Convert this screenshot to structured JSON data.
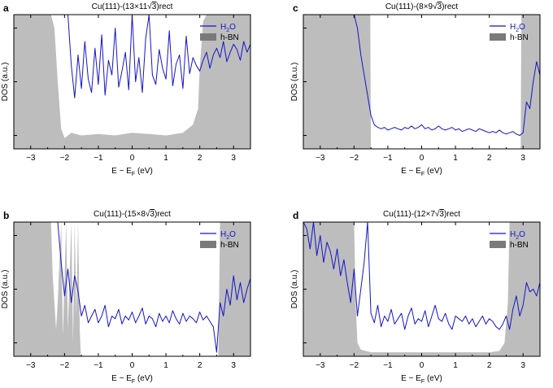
{
  "colors": {
    "h2o": "#1515c8",
    "hbn": "#bdbdbd",
    "hbn_legend": "#7a7a7a",
    "axis": "#000000"
  },
  "chart_data": [
    {
      "type": "area",
      "panel_label": "a",
      "title_prefix": "Cu(111)-(13",
      "title_mid": "11",
      "title_sqrt": "3",
      "title_suffix": ")rect",
      "xlabel": "E − E",
      "xlabel_sub": "F",
      "xlabel_unit": " (eV)",
      "ylabel": "DOS (a.u.)",
      "xlim": [
        -3.5,
        3.5
      ],
      "ylim": [
        0,
        100
      ],
      "xticks": [
        -3,
        -2,
        -1,
        0,
        1,
        2,
        3
      ],
      "grid": false,
      "legend_position": "top-right",
      "legend": [
        {
          "label": "H",
          "sub": "2",
          "tail": "O",
          "kind": "line"
        },
        {
          "label": "h-BN",
          "kind": "box"
        }
      ],
      "hbn_x": [
        -3.5,
        -2.4,
        -2.3,
        -2.2,
        -2.1,
        -2.0,
        -1.8,
        -1.5,
        -1.0,
        -0.5,
        0.0,
        0.5,
        1.0,
        1.5,
        1.8,
        1.95,
        2.0,
        2.1,
        2.2,
        2.4,
        3.5
      ],
      "hbn_y": [
        100,
        100,
        90,
        50,
        15,
        8,
        12,
        10,
        11,
        10,
        12,
        11,
        10,
        12,
        18,
        30,
        60,
        95,
        100,
        100,
        100
      ],
      "h2o_x": [
        -3.5,
        -3.4,
        -3.3,
        -3.2,
        -3.1,
        -3.0,
        -2.9,
        -2.8,
        -2.7,
        -2.6,
        -2.5,
        -2.4,
        -2.3,
        -2.2,
        -2.1,
        -2.0,
        -1.9,
        -1.8,
        -1.7,
        -1.6,
        -1.5,
        -1.4,
        -1.3,
        -1.2,
        -1.1,
        -1.0,
        -0.9,
        -0.8,
        -0.7,
        -0.6,
        -0.5,
        -0.4,
        -0.3,
        -0.2,
        -0.1,
        0.0,
        0.1,
        0.2,
        0.3,
        0.4,
        0.5,
        0.6,
        0.7,
        0.8,
        0.9,
        1.0,
        1.1,
        1.2,
        1.3,
        1.4,
        1.5,
        1.6,
        1.7,
        1.8,
        1.9,
        2.0,
        2.1,
        2.2,
        2.3,
        2.4,
        2.5,
        2.6,
        2.7,
        2.8,
        2.9,
        3.0,
        3.1,
        3.2,
        3.3,
        3.4,
        3.5
      ],
      "h2o_y": [
        100,
        100,
        100,
        100,
        100,
        100,
        100,
        100,
        100,
        100,
        100,
        100,
        100,
        100,
        100,
        100,
        100,
        62,
        38,
        70,
        45,
        80,
        52,
        42,
        75,
        48,
        85,
        40,
        66,
        55,
        90,
        46,
        58,
        72,
        44,
        100,
        50,
        68,
        42,
        82,
        100,
        55,
        48,
        74,
        60,
        52,
        88,
        47,
        63,
        70,
        45,
        84,
        56,
        68,
        62,
        58,
        66,
        72,
        60,
        70,
        75,
        68,
        80,
        65,
        72,
        78,
        74,
        66,
        80,
        72,
        78
      ]
    },
    {
      "type": "area",
      "panel_label": "c",
      "title_prefix": "Cu(111)-(8",
      "title_mid": "9",
      "title_sqrt": "3",
      "title_suffix": ")rect",
      "xlabel": "E − E",
      "xlabel_sub": "F",
      "xlabel_unit": " (eV)",
      "ylabel": "DOS (a.u.)",
      "xlim": [
        -3.5,
        3.5
      ],
      "ylim": [
        0,
        100
      ],
      "xticks": [
        -3,
        -2,
        -1,
        0,
        1,
        2,
        3
      ],
      "grid": false,
      "legend_position": "top-right",
      "legend": [
        {
          "label": "H",
          "sub": "2",
          "tail": "O",
          "kind": "line"
        },
        {
          "label": "h-BN",
          "kind": "box"
        }
      ],
      "hbn_x": [
        -3.5,
        -1.52,
        -1.5,
        2.93,
        2.95,
        3.5
      ],
      "hbn_y": [
        100,
        100,
        0,
        0,
        100,
        100
      ],
      "h2o_x": [
        -3.5,
        -2.0,
        -1.9,
        -1.8,
        -1.7,
        -1.6,
        -1.5,
        -1.4,
        -1.3,
        -1.2,
        -1.1,
        -1.0,
        -0.9,
        -0.8,
        -0.7,
        -0.6,
        -0.5,
        -0.4,
        -0.3,
        -0.2,
        -0.1,
        0.0,
        0.1,
        0.2,
        0.3,
        0.4,
        0.5,
        0.6,
        0.7,
        0.8,
        0.9,
        1.0,
        1.1,
        1.2,
        1.3,
        1.4,
        1.5,
        1.6,
        1.7,
        1.8,
        1.9,
        2.0,
        2.1,
        2.2,
        2.3,
        2.4,
        2.5,
        2.6,
        2.7,
        2.8,
        2.9,
        3.0,
        3.1,
        3.2,
        3.3,
        3.4,
        3.5
      ],
      "h2o_y": [
        100,
        100,
        90,
        70,
        55,
        40,
        25,
        18,
        16,
        15,
        16,
        14,
        15,
        16,
        15,
        14,
        16,
        15,
        17,
        15,
        16,
        18,
        15,
        16,
        14,
        15,
        17,
        15,
        14,
        15,
        16,
        14,
        15,
        13,
        14,
        15,
        14,
        13,
        15,
        14,
        13,
        12,
        13,
        12,
        14,
        12,
        11,
        12,
        13,
        11,
        10,
        12,
        35,
        30,
        50,
        65,
        55
      ]
    },
    {
      "type": "area",
      "panel_label": "b",
      "title_prefix": "Cu(111)-(15",
      "title_mid": "8",
      "title_sqrt": "3",
      "title_suffix": ")rect",
      "xlabel": "E − E",
      "xlabel_sub": "F",
      "xlabel_unit": " (eV)",
      "ylabel": "DOS (a.u.)",
      "xlim": [
        -3.5,
        3.5
      ],
      "ylim": [
        0,
        100
      ],
      "xticks": [
        -3,
        -2,
        -1,
        0,
        1,
        2,
        3
      ],
      "grid": false,
      "legend_position": "top-right",
      "legend": [
        {
          "label": "H",
          "sub": "2",
          "tail": "O",
          "kind": "line"
        },
        {
          "label": "h-BN",
          "kind": "box"
        }
      ],
      "hbn_x": [
        -3.5,
        -2.4,
        -2.35,
        -2.25,
        -2.2,
        -2.1,
        -2.05,
        -1.95,
        -1.9,
        -1.85,
        -1.8,
        -1.75,
        -1.7,
        -1.65,
        -1.6,
        -1.55,
        -1.52,
        2.55,
        2.6,
        2.7,
        3.5
      ],
      "hbn_y": [
        100,
        100,
        60,
        20,
        40,
        100,
        15,
        100,
        20,
        60,
        100,
        10,
        100,
        30,
        100,
        20,
        0,
        0,
        100,
        100,
        100
      ],
      "h2o_x": [
        -3.5,
        -2.2,
        -2.1,
        -2.0,
        -1.9,
        -1.8,
        -1.7,
        -1.6,
        -1.5,
        -1.4,
        -1.3,
        -1.2,
        -1.1,
        -1.0,
        -0.9,
        -0.8,
        -0.7,
        -0.6,
        -0.5,
        -0.4,
        -0.3,
        -0.2,
        -0.1,
        0.0,
        0.1,
        0.2,
        0.3,
        0.4,
        0.5,
        0.6,
        0.7,
        0.8,
        0.9,
        1.0,
        1.1,
        1.2,
        1.3,
        1.4,
        1.5,
        1.6,
        1.7,
        1.8,
        1.9,
        2.0,
        2.1,
        2.2,
        2.3,
        2.4,
        2.5,
        2.6,
        2.7,
        2.8,
        2.9,
        3.0,
        3.1,
        3.2,
        3.3,
        3.4,
        3.5
      ],
      "h2o_y": [
        100,
        100,
        70,
        45,
        65,
        40,
        60,
        48,
        30,
        38,
        25,
        30,
        35,
        25,
        30,
        38,
        22,
        30,
        28,
        35,
        24,
        30,
        27,
        33,
        25,
        30,
        36,
        24,
        30,
        28,
        22,
        32,
        26,
        30,
        25,
        34,
        28,
        24,
        32,
        26,
        30,
        28,
        25,
        33,
        27,
        30,
        26,
        22,
        3,
        40,
        30,
        50,
        38,
        60,
        42,
        55,
        40,
        50,
        58
      ]
    },
    {
      "type": "area",
      "panel_label": "d",
      "title_prefix": "Cu(111)-(12",
      "title_mid": "7",
      "title_sqrt": "3",
      "title_suffix": ")rect",
      "xlabel": "E − E",
      "xlabel_sub": "F",
      "xlabel_unit": " (eV)",
      "ylabel": "DOS (a.u.)",
      "xlim": [
        -3.5,
        3.5
      ],
      "ylim": [
        0,
        100
      ],
      "xticks": [
        -3,
        -2,
        -1,
        0,
        1,
        2,
        3
      ],
      "grid": false,
      "legend_position": "top-right",
      "legend": [
        {
          "label": "H",
          "sub": "2",
          "tail": "O",
          "kind": "line"
        },
        {
          "label": "h-BN",
          "kind": "box"
        }
      ],
      "hbn_x": [
        -3.5,
        -2.0,
        -1.95,
        -1.9,
        -1.8,
        -1.5,
        -1.0,
        -0.5,
        0.0,
        0.5,
        1.0,
        1.5,
        2.0,
        2.3,
        2.45,
        2.55,
        2.6,
        3.5
      ],
      "hbn_y": [
        100,
        100,
        40,
        10,
        5,
        3,
        3,
        3,
        3,
        3,
        3,
        3,
        3,
        4,
        10,
        40,
        100,
        100
      ],
      "h2o_x": [
        -3.5,
        -3.4,
        -3.3,
        -3.2,
        -3.1,
        -3.0,
        -2.9,
        -2.8,
        -2.7,
        -2.6,
        -2.5,
        -2.4,
        -2.3,
        -2.2,
        -2.1,
        -2.0,
        -1.9,
        -1.8,
        -1.7,
        -1.6,
        -1.5,
        -1.4,
        -1.3,
        -1.2,
        -1.1,
        -1.0,
        -0.9,
        -0.8,
        -0.7,
        -0.6,
        -0.5,
        -0.4,
        -0.3,
        -0.2,
        -0.1,
        0.0,
        0.1,
        0.2,
        0.3,
        0.4,
        0.5,
        0.6,
        0.7,
        0.8,
        0.9,
        1.0,
        1.1,
        1.2,
        1.3,
        1.4,
        1.5,
        1.6,
        1.7,
        1.8,
        1.9,
        2.0,
        2.1,
        2.2,
        2.3,
        2.4,
        2.5,
        2.6,
        2.7,
        2.8,
        2.9,
        3.0,
        3.1,
        3.2,
        3.3,
        3.4,
        3.5
      ],
      "h2o_y": [
        100,
        95,
        80,
        100,
        75,
        90,
        70,
        85,
        78,
        65,
        80,
        60,
        72,
        55,
        40,
        65,
        30,
        50,
        70,
        100,
        32,
        25,
        38,
        22,
        30,
        26,
        35,
        24,
        28,
        32,
        20,
        30,
        36,
        24,
        28,
        26,
        34,
        22,
        30,
        38,
        28,
        26,
        32,
        24,
        20,
        30,
        28,
        26,
        30,
        24,
        28,
        22,
        26,
        30,
        24,
        28,
        26,
        22,
        20,
        24,
        30,
        20,
        35,
        45,
        30,
        38,
        55,
        48,
        50,
        45,
        55
      ]
    }
  ]
}
